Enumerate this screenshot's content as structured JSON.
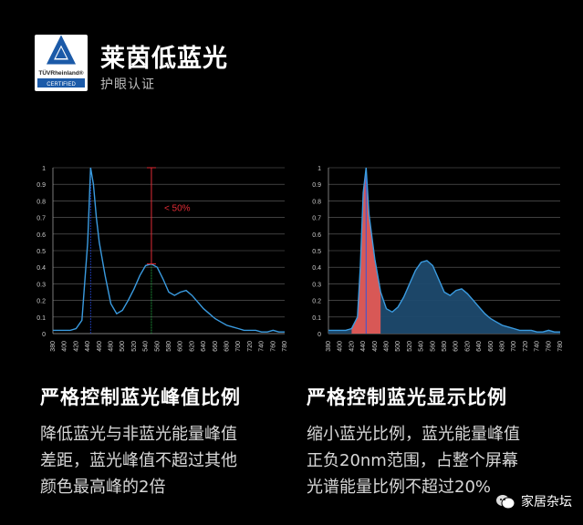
{
  "header": {
    "logo_text_top": "TÜVRheinland®",
    "logo_text_bottom": "CERTIFIED",
    "title": "莱茵低蓝光",
    "subtitle": "护眼认证"
  },
  "chart_data": [
    {
      "type": "line",
      "x": [
        380,
        390,
        400,
        410,
        420,
        430,
        440,
        445,
        450,
        455,
        460,
        470,
        480,
        490,
        500,
        510,
        520,
        530,
        540,
        550,
        560,
        570,
        580,
        590,
        600,
        610,
        620,
        630,
        640,
        650,
        660,
        670,
        680,
        690,
        700,
        710,
        720,
        730,
        740,
        750,
        760,
        770,
        780
      ],
      "series": [
        {
          "values": [
            0.02,
            0.02,
            0.02,
            0.02,
            0.03,
            0.08,
            0.55,
            1.0,
            0.9,
            0.7,
            0.55,
            0.35,
            0.18,
            0.12,
            0.14,
            0.2,
            0.27,
            0.35,
            0.41,
            0.42,
            0.4,
            0.33,
            0.25,
            0.23,
            0.25,
            0.26,
            0.23,
            0.19,
            0.15,
            0.12,
            0.09,
            0.07,
            0.05,
            0.04,
            0.03,
            0.02,
            0.02,
            0.02,
            0.01,
            0.01,
            0.02,
            0.01,
            0.01
          ],
          "color": "#3a9be0"
        }
      ],
      "xticks": [
        "380",
        "400",
        "420",
        "440",
        "460",
        "480",
        "500",
        "520",
        "540",
        "560",
        "580",
        "600",
        "620",
        "640",
        "660",
        "680",
        "700",
        "720",
        "740",
        "760",
        "780"
      ],
      "yticks": [
        "0",
        "0.1",
        "0.2",
        "0.3",
        "0.4",
        "0.5",
        "0.6",
        "0.7",
        "0.8",
        "0.9",
        "1"
      ],
      "ylim": [
        0,
        1
      ],
      "xlim": [
        380,
        780
      ],
      "annotation": {
        "text": "< 50%",
        "x": 550,
        "y_top": 1.0,
        "y_bottom": 0.42,
        "color": "#e02b35"
      },
      "markers": [
        {
          "x": 445,
          "color": "#2244cc"
        },
        {
          "x": 550,
          "color": "#22aa44"
        }
      ],
      "grid": true
    },
    {
      "type": "area",
      "x": [
        380,
        390,
        400,
        410,
        420,
        430,
        435,
        440,
        445,
        450,
        460,
        470,
        480,
        490,
        500,
        510,
        520,
        530,
        540,
        550,
        560,
        570,
        580,
        590,
        600,
        610,
        620,
        630,
        640,
        650,
        660,
        670,
        680,
        690,
        700,
        710,
        720,
        730,
        740,
        750,
        760,
        770,
        780
      ],
      "series": [
        {
          "values": [
            0.02,
            0.02,
            0.02,
            0.02,
            0.03,
            0.1,
            0.4,
            0.85,
            1.0,
            0.72,
            0.45,
            0.25,
            0.15,
            0.13,
            0.16,
            0.22,
            0.3,
            0.38,
            0.43,
            0.44,
            0.41,
            0.33,
            0.25,
            0.23,
            0.26,
            0.27,
            0.24,
            0.2,
            0.16,
            0.12,
            0.09,
            0.07,
            0.05,
            0.04,
            0.03,
            0.02,
            0.02,
            0.02,
            0.01,
            0.01,
            0.02,
            0.01,
            0.01
          ],
          "color": "#3a9be0"
        }
      ],
      "highlight_range": [
        420,
        470
      ],
      "highlight_color": "#e85a55",
      "xticks": [
        "380",
        "400",
        "420",
        "440",
        "460",
        "480",
        "500",
        "520",
        "540",
        "560",
        "580",
        "600",
        "620",
        "640",
        "660",
        "680",
        "700",
        "720",
        "740",
        "760",
        "780"
      ],
      "yticks": [
        "0",
        "0.1",
        "0.2",
        "0.3",
        "0.4",
        "0.5",
        "0.6",
        "0.7",
        "0.8",
        "0.9",
        "1"
      ],
      "ylim": [
        0,
        1
      ],
      "xlim": [
        380,
        780
      ],
      "grid": true
    }
  ],
  "sections": [
    {
      "title": "严格控制蓝光峰值比例",
      "lines": [
        "降低蓝光与非蓝光能量峰值",
        "差距，蓝光峰值不超过其他",
        "颜色最高峰的2倍"
      ]
    },
    {
      "title": "严格控制蓝光显示比例",
      "lines": [
        "缩小蓝光比例，蓝光能量峰值",
        "正负20nm范围，占整个屏幕",
        "光谱能量比例不超过20%"
      ]
    }
  ],
  "watermark": {
    "text": "家居杂坛",
    "icon": "wechat-icon"
  }
}
